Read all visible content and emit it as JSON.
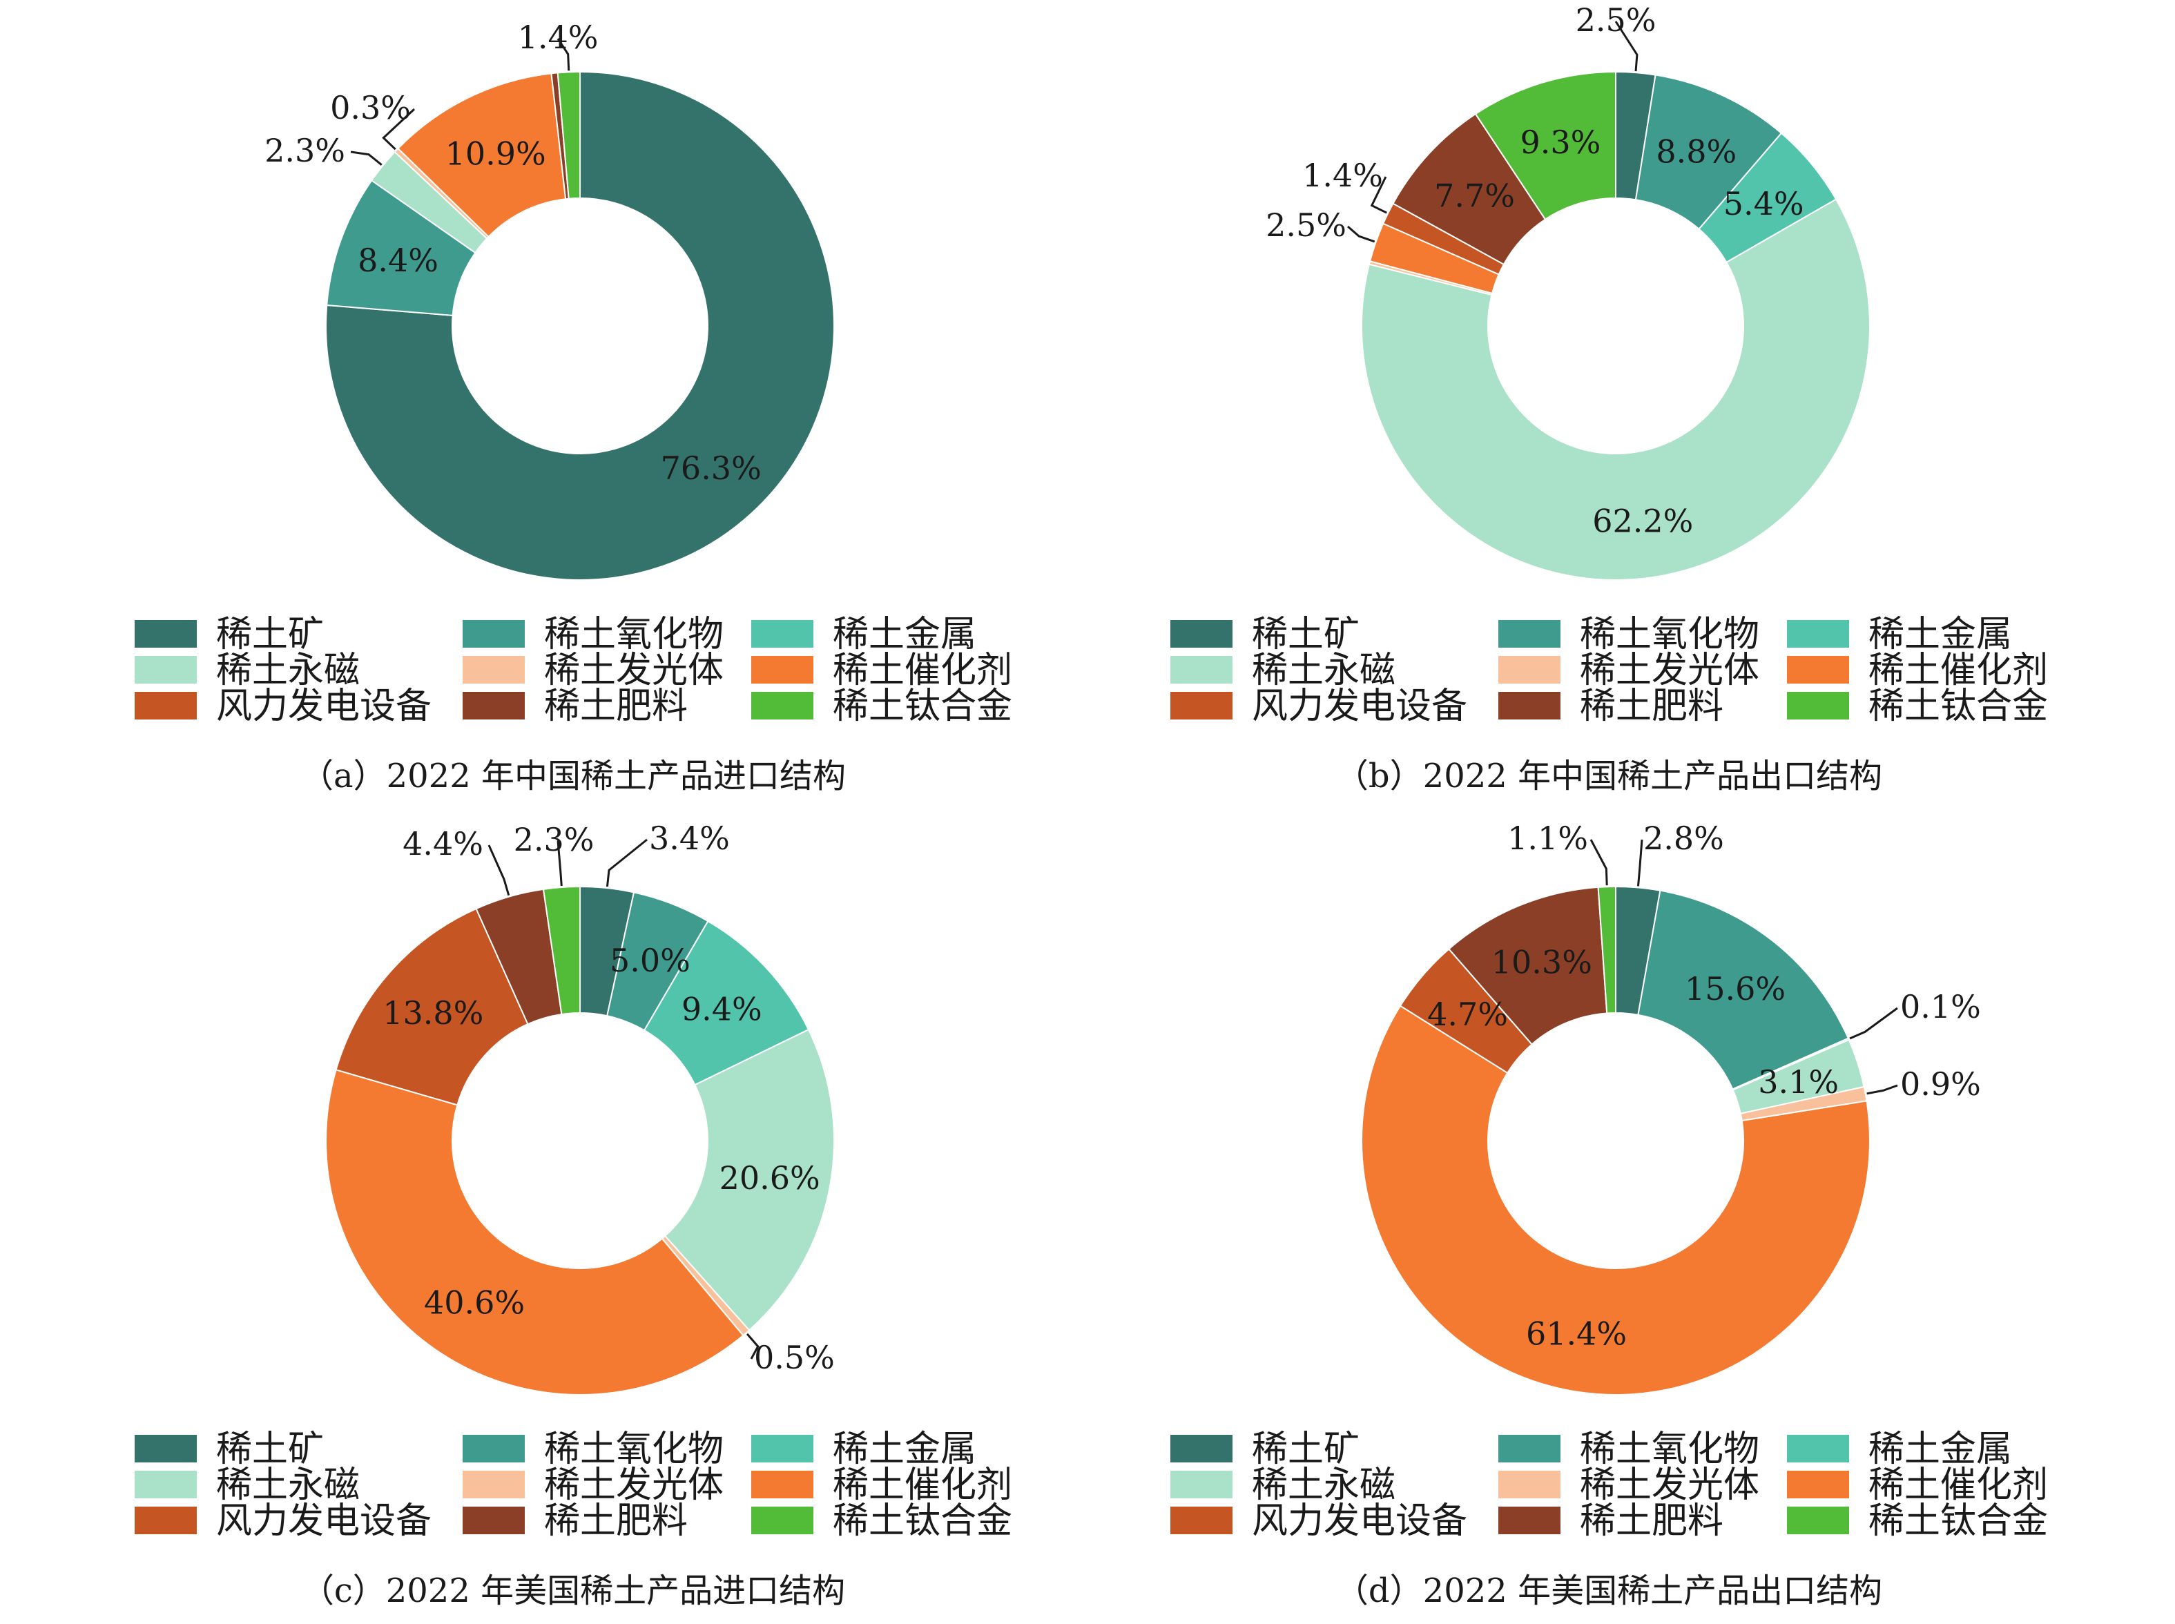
{
  "categories": [
    "稀土矿",
    "稀土氧化物",
    "稀土金属",
    "稀土永磁",
    "稀土发光体",
    "稀土催化剂",
    "风力发电设备",
    "稀土肥料",
    "稀土钛合金"
  ],
  "colors": [
    "#33736c",
    "#3e9b8e",
    "#52c4ac",
    "#a9e1c9",
    "#f8c19b",
    "#f47a32",
    "#c65524",
    "#8a3f26",
    "#52bb38"
  ],
  "chart_data": [
    {
      "type": "pie",
      "subtype": "donut",
      "title": "（a）2022 年中国稀土产品进口结构",
      "categories": [
        "稀土矿",
        "稀土氧化物",
        "稀土金属",
        "稀土永磁",
        "稀土发光体",
        "稀土催化剂",
        "风力发电设备",
        "稀土肥料",
        "稀土钛合金"
      ],
      "values": [
        76.3,
        8.4,
        0,
        2.3,
        0.3,
        10.9,
        0,
        0.4,
        1.4
      ],
      "labels": [
        "76.3%",
        "8.4%",
        "",
        "2.3%",
        "0.3%",
        "10.9%",
        "",
        "",
        "1.4%"
      ]
    },
    {
      "type": "pie",
      "subtype": "donut",
      "title": "（b）2022 年中国稀土产品出口结构",
      "categories": [
        "稀土矿",
        "稀土氧化物",
        "稀土金属",
        "稀土永磁",
        "稀土发光体",
        "稀土催化剂",
        "风力发电设备",
        "稀土肥料",
        "稀土钛合金"
      ],
      "values": [
        2.5,
        8.8,
        5.4,
        62.2,
        0.2,
        2.5,
        1.4,
        7.7,
        9.3
      ],
      "labels": [
        "2.5%",
        "8.8%",
        "5.4%",
        "62.2%",
        "",
        "2.5%",
        "1.4%",
        "7.7%",
        "9.3%"
      ]
    },
    {
      "type": "pie",
      "subtype": "donut",
      "title": "（c）2022 年美国稀土产品进口结构",
      "categories": [
        "稀土矿",
        "稀土氧化物",
        "稀土金属",
        "稀土永磁",
        "稀土发光体",
        "稀土催化剂",
        "风力发电设备",
        "稀土肥料",
        "稀土钛合金"
      ],
      "values": [
        3.4,
        5.0,
        9.4,
        20.6,
        0.5,
        40.6,
        13.8,
        4.4,
        2.3
      ],
      "labels": [
        "3.4%",
        "5.0%",
        "9.4%",
        "20.6%",
        "0.5%",
        "40.6%",
        "13.8%",
        "4.4%",
        "2.3%"
      ]
    },
    {
      "type": "pie",
      "subtype": "donut",
      "title": "（d）2022 年美国稀土产品出口结构",
      "categories": [
        "稀土矿",
        "稀土氧化物",
        "稀土金属",
        "稀土永磁",
        "稀土发光体",
        "稀土催化剂",
        "风力发电设备",
        "稀土肥料",
        "稀土钛合金"
      ],
      "values": [
        2.8,
        15.6,
        0.1,
        3.1,
        0.9,
        61.4,
        4.7,
        10.3,
        1.1
      ],
      "labels": [
        "2.8%",
        "15.6%",
        "0.1%",
        "3.1%",
        "0.9%",
        "61.4%",
        "4.7%",
        "10.3%",
        "1.1%"
      ]
    }
  ]
}
